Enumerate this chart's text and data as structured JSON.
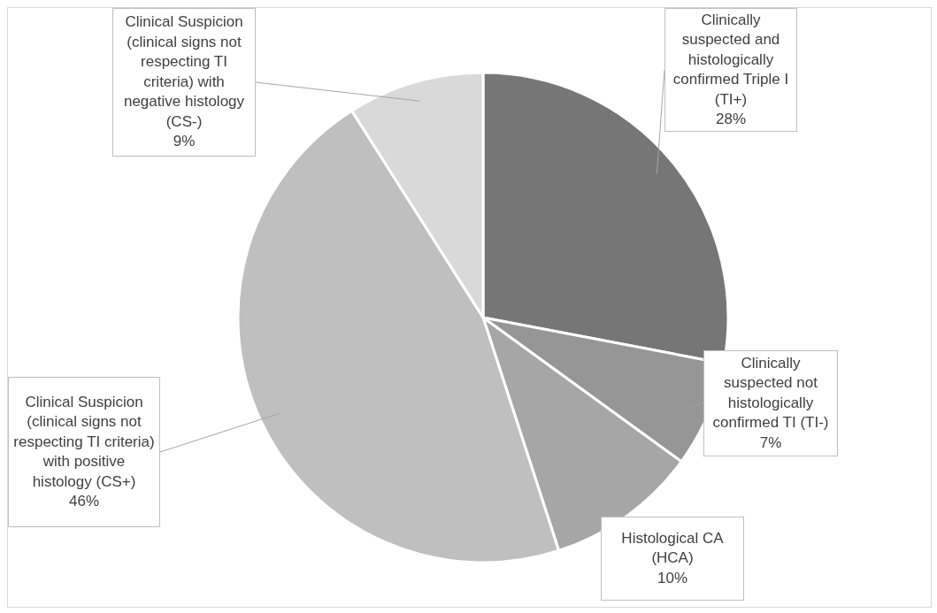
{
  "chart_data": {
    "type": "pie",
    "categories": [
      "Clinically suspected and histologically confirmed Triple I (TI+)",
      "Clinically suspected not histologically confirmed TI (TI-)",
      "Histological CA (HCA)",
      "Clinical Suspicion (clinical signs not respecting TI criteria) with positive histology (CS+)",
      "Clinical Suspicion (clinical signs not respecting TI criteria) with negative histology (CS-)"
    ],
    "values": [
      28,
      7,
      10,
      46,
      9
    ],
    "colors": [
      "#767676",
      "#969696",
      "#a6a6a6",
      "#bfbfbf",
      "#d9d9d9"
    ],
    "value_labels": [
      "28%",
      "7%",
      "10%",
      "46%",
      "9%"
    ]
  }
}
